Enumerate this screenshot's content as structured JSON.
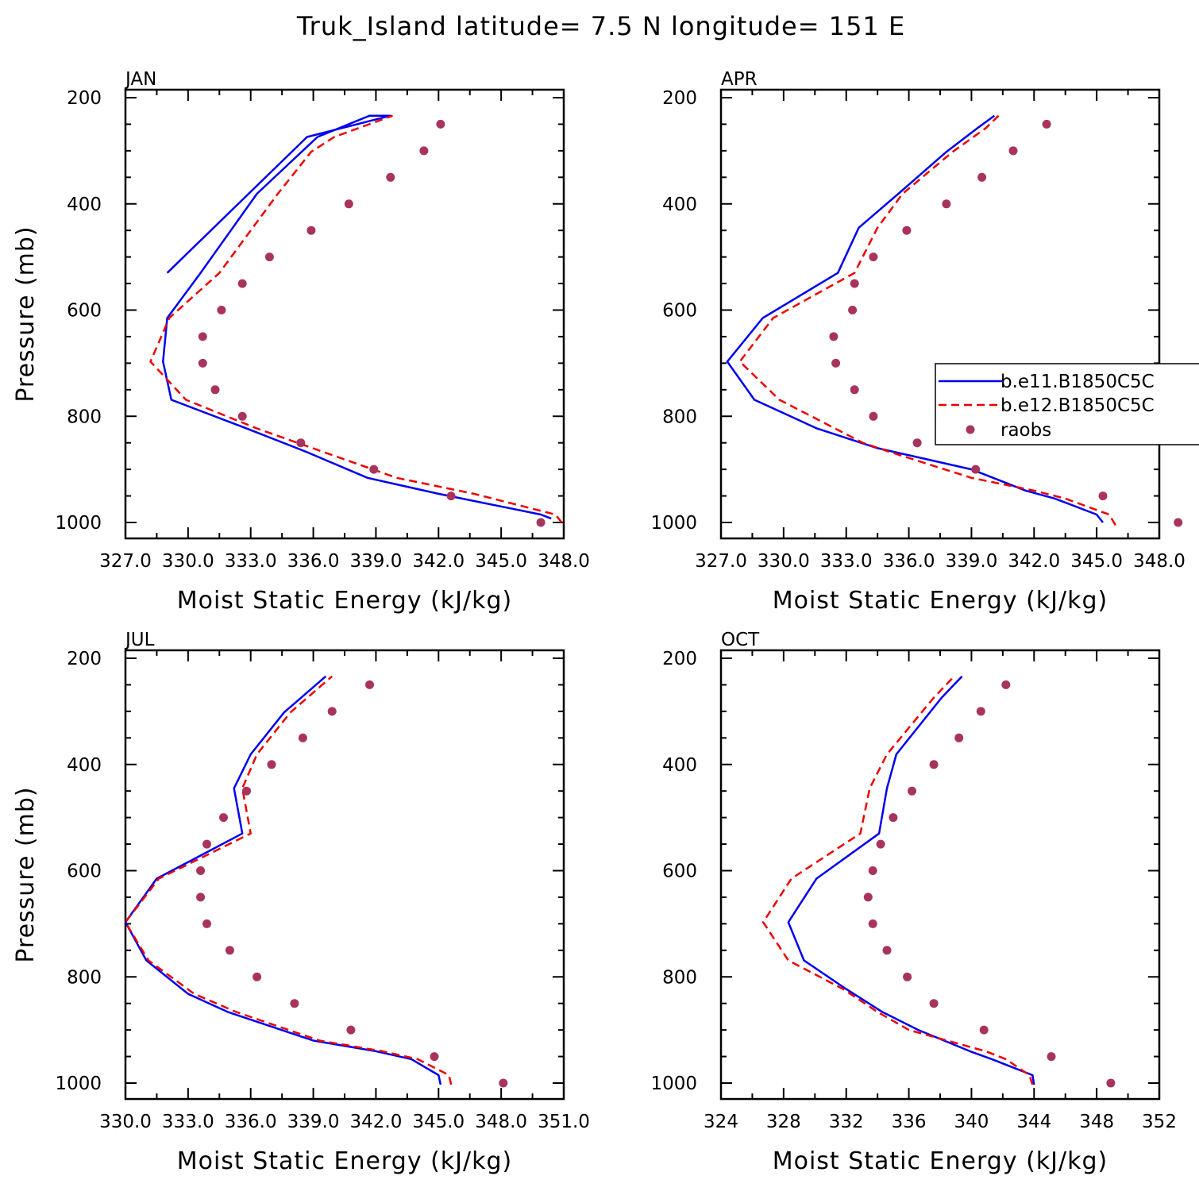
{
  "title": "Truk_Island  latitude= 7.5 N longitude= 151 E",
  "colors": {
    "model1": "#0000ee",
    "model2": "#ee0000",
    "obs": "#a8345e"
  },
  "legend": {
    "items": [
      {
        "label": "b.e11.B1850C5C",
        "style": "solid",
        "color": "#0000ee"
      },
      {
        "label": "b.e12.B1850C5C",
        "style": "dashed",
        "color": "#ee0000"
      },
      {
        "label": "raobs",
        "style": "marker",
        "color": "#a8345e"
      }
    ]
  },
  "chart_data": [
    {
      "type": "line",
      "title": "JAN",
      "xlabel": "Moist Static Energy (kJ/kg)",
      "ylabel": "Pressure (mb)",
      "xlim": [
        327,
        348
      ],
      "ylim": [
        1000,
        200
      ],
      "xticks": [
        327,
        330,
        333,
        336,
        339,
        342,
        345,
        348
      ],
      "xtick_labels": [
        "327.0",
        "330.0",
        "333.0",
        "336.0",
        "339.0",
        "342.0",
        "345.0",
        "348.0"
      ],
      "yticks": [
        200,
        400,
        600,
        800,
        1000
      ],
      "ytick_labels": [
        "200",
        "400",
        "600",
        "800",
        "1000"
      ],
      "series": [
        {
          "name": "b.e11.B1850C5C",
          "x": [
            347.4,
            346.9,
            342.0,
            338.6,
            335.6,
            332.8,
            329.2,
            328.8,
            329.0,
            330.6,
            333.3,
            336.2,
            338.7,
            339.7,
            335.7,
            332.9,
            329.0
          ],
          "y": [
            992.6,
            985,
            946,
            916,
            866,
            823,
            769,
            697,
            615,
            530,
            381,
            274,
            234,
            234,
            274,
            381,
            530
          ]
        },
        {
          "name": "b.e12.B1850C5C",
          "x": [
            347.9,
            347.6,
            343.7,
            340.0,
            336.4,
            333.3,
            329.9,
            328.2,
            329.1,
            331.5,
            334.3,
            335.9,
            337.0,
            339.8
          ],
          "y": [
            1000,
            985,
            946,
            916,
            866,
            823,
            769,
            697,
            615,
            530,
            381,
            302,
            274,
            234
          ]
        },
        {
          "name": "raobs",
          "x": [
            346.9,
            342.6,
            338.9,
            335.4,
            332.6,
            331.3,
            330.7,
            330.7,
            331.6,
            332.6,
            333.9,
            335.9,
            337.7,
            339.7,
            341.3,
            342.1
          ],
          "y": [
            1000,
            950,
            900,
            850,
            800,
            750,
            700,
            650,
            600,
            550,
            500,
            450,
            400,
            350,
            300,
            250
          ]
        }
      ]
    },
    {
      "type": "line",
      "title": "APR",
      "xlabel": "Moist Static Energy (kJ/kg)",
      "ylabel": "",
      "xlim": [
        327,
        348
      ],
      "ylim": [
        1000,
        200
      ],
      "xticks": [
        327,
        330,
        333,
        336,
        339,
        342,
        345,
        348
      ],
      "xtick_labels": [
        "327.0",
        "330.0",
        "333.0",
        "336.0",
        "339.0",
        "342.0",
        "345.0",
        "348.0"
      ],
      "yticks": [
        200,
        400,
        600,
        800,
        1000
      ],
      "ytick_labels": [
        "200",
        "400",
        "600",
        "800",
        "1000"
      ],
      "series": [
        {
          "name": "b.e11.B1850C5C",
          "x": [
            345.3,
            345.0,
            343.0,
            341.6,
            339.0,
            334.5,
            331.6,
            328.6,
            327.3,
            329.0,
            332.6,
            333.6,
            335.5,
            337.8,
            339.3,
            340.1
          ],
          "y": [
            1000,
            985,
            955,
            940,
            900,
            860,
            823,
            769,
            697,
            615,
            530,
            445,
            381,
            302,
            257,
            234
          ]
        },
        {
          "name": "b.e12.B1850C5C",
          "x": [
            345.9,
            345.6,
            343.5,
            342.0,
            339.0,
            335.0,
            333.8,
            329.8,
            327.9,
            329.5,
            333.4,
            334.5,
            335.7,
            338.1,
            339.7,
            340.3
          ],
          "y": [
            1005,
            985,
            955,
            940,
            916,
            866,
            850,
            769,
            697,
            615,
            530,
            445,
            381,
            302,
            257,
            234
          ]
        },
        {
          "name": "raobs",
          "x": [
            348.9,
            345.3,
            339.2,
            336.4,
            334.3,
            333.4,
            332.5,
            332.4,
            333.3,
            333.4,
            334.3,
            335.9,
            337.8,
            339.5,
            341.0,
            342.6
          ],
          "y": [
            1000,
            950,
            900,
            850,
            800,
            750,
            700,
            650,
            600,
            550,
            500,
            450,
            400,
            350,
            300,
            250
          ]
        }
      ]
    },
    {
      "type": "line",
      "title": "JUL",
      "xlabel": "Moist Static Energy (kJ/kg)",
      "ylabel": "Pressure (mb)",
      "xlim": [
        330,
        351
      ],
      "ylim": [
        1000,
        200
      ],
      "xticks": [
        330,
        333,
        336,
        339,
        342,
        345,
        348,
        351
      ],
      "xtick_labels": [
        "330.0",
        "333.0",
        "336.0",
        "339.0",
        "342.0",
        "345.0",
        "348.0",
        "351.0"
      ],
      "yticks": [
        200,
        400,
        600,
        800,
        1000
      ],
      "ytick_labels": [
        "200",
        "400",
        "600",
        "800",
        "1000"
      ],
      "series": [
        {
          "name": "b.e11.B1850C5C",
          "x": [
            345.1,
            345.0,
            343.7,
            342.0,
            339.0,
            334.9,
            333.0,
            331.0,
            330.0,
            331.5,
            335.6,
            335.2,
            336.0,
            337.6,
            339.6
          ],
          "y": [
            1003,
            985,
            955,
            940,
            920,
            866,
            832,
            769,
            697,
            615,
            530,
            445,
            381,
            302,
            234
          ]
        },
        {
          "name": "b.e12.B1850C5C",
          "x": [
            345.6,
            345.5,
            344.0,
            342.3,
            339.3,
            335.3,
            333.3,
            331.1,
            330.0,
            331.6,
            336.0,
            335.6,
            336.3,
            337.9,
            339.9
          ],
          "y": [
            1003,
            985,
            955,
            940,
            920,
            866,
            832,
            769,
            697,
            615,
            530,
            445,
            381,
            302,
            234
          ]
        },
        {
          "name": "raobs",
          "x": [
            348.1,
            344.8,
            340.8,
            338.1,
            336.3,
            335.0,
            333.9,
            333.6,
            333.6,
            333.9,
            334.7,
            335.8,
            337.0,
            338.5,
            339.9,
            341.7
          ],
          "y": [
            1000,
            950,
            900,
            850,
            800,
            750,
            700,
            650,
            600,
            550,
            500,
            450,
            400,
            350,
            300,
            250
          ]
        }
      ]
    },
    {
      "type": "line",
      "title": "OCT",
      "xlabel": "Moist Static Energy (kJ/kg)",
      "ylabel": "",
      "xlim": [
        324,
        352
      ],
      "ylim": [
        1000,
        200
      ],
      "xticks": [
        324,
        328,
        332,
        336,
        340,
        344,
        348,
        352
      ],
      "xtick_labels": [
        "324",
        "328",
        "332",
        "336",
        "340",
        "344",
        "348",
        "352"
      ],
      "yticks": [
        200,
        400,
        600,
        800,
        1000
      ],
      "ytick_labels": [
        "200",
        "400",
        "600",
        "800",
        "1000"
      ],
      "series": [
        {
          "name": "b.e11.B1850C5C",
          "x": [
            344.0,
            343.9,
            341.3,
            339.9,
            336.6,
            334.3,
            332.0,
            329.3,
            328.3,
            330.1,
            334.1,
            334.6,
            335.2,
            338.1,
            339.4
          ],
          "y": [
            1003,
            985,
            955,
            940,
            900,
            866,
            823,
            769,
            697,
            615,
            530,
            445,
            381,
            274,
            234
          ]
        },
        {
          "name": "b.e12.B1850C5C",
          "x": [
            343.9,
            343.7,
            342.2,
            340.9,
            336.0,
            334.0,
            331.8,
            328.3,
            326.7,
            328.5,
            332.9,
            333.5,
            334.6,
            337.6,
            338.9
          ],
          "y": [
            1003,
            985,
            955,
            940,
            900,
            866,
            823,
            769,
            697,
            615,
            530,
            445,
            381,
            274,
            234
          ]
        },
        {
          "name": "raobs",
          "x": [
            348.9,
            345.1,
            340.8,
            337.6,
            335.9,
            334.6,
            333.7,
            333.4,
            333.7,
            334.2,
            335.0,
            336.2,
            337.6,
            339.2,
            340.6,
            342.2
          ],
          "y": [
            1000,
            950,
            900,
            850,
            800,
            750,
            700,
            650,
            600,
            550,
            500,
            450,
            400,
            350,
            300,
            250
          ]
        }
      ]
    }
  ]
}
